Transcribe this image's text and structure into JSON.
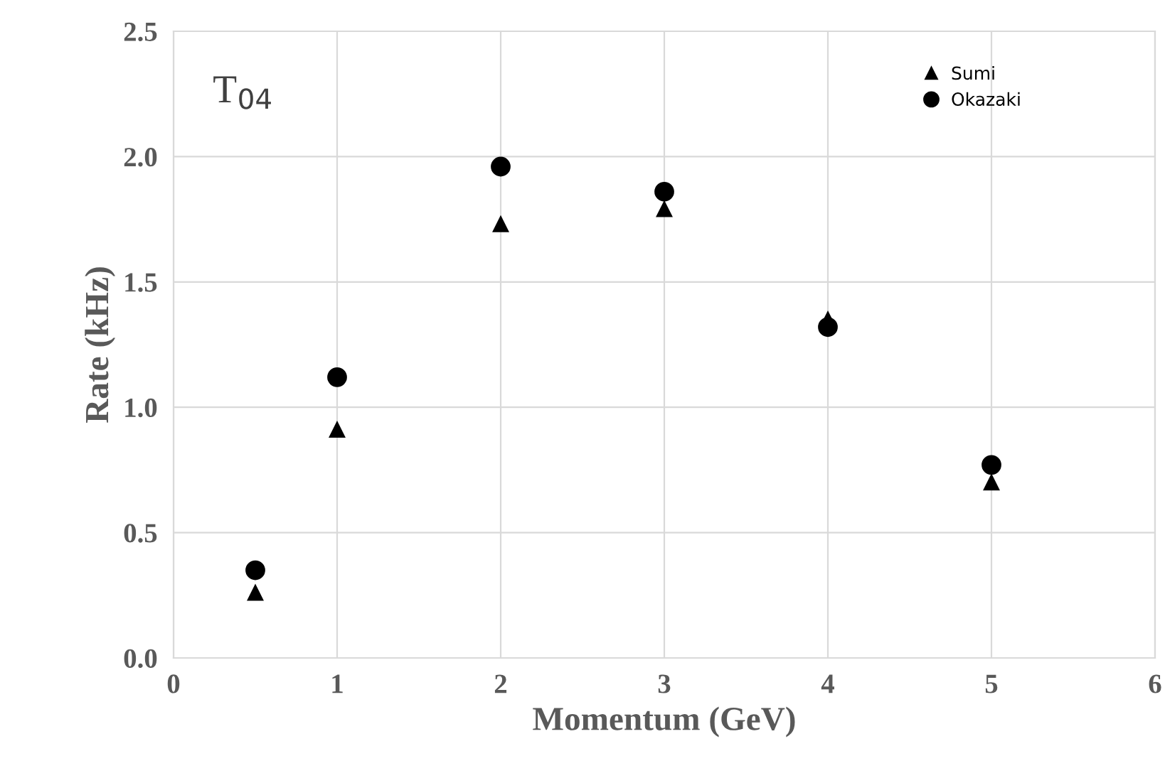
{
  "chart_data": {
    "type": "scatter",
    "xlabel": "Momentum (GeV)",
    "ylabel": "Rate (kHz)",
    "annotations": [
      "T$_{04}$"
    ],
    "series": [
      {
        "name": "Sumi",
        "color": "#000000",
        "marker": "triangle",
        "x": [
          0.5,
          1,
          2,
          3,
          4,
          5
        ],
        "values": [
          0.26,
          0.91,
          1.73,
          1.79,
          1.35,
          0.7
        ]
      },
      {
        "name": "Okazaki",
        "color": "#000000",
        "marker": "circle",
        "x": [
          0.5,
          1,
          2,
          3,
          4,
          5
        ],
        "values": [
          0.35,
          1.12,
          1.96,
          1.86,
          1.32,
          0.77
        ]
      }
    ],
    "xlim": [
      0,
      6
    ],
    "xticks": [
      0,
      1,
      2,
      3,
      4,
      5,
      6
    ],
    "ylim": [
      0,
      2.5
    ],
    "yticks": [
      {
        "value": 0,
        "label": "0.0"
      },
      {
        "value": 0.5,
        "label": "0.5"
      },
      {
        "value": 1,
        "label": "1.0"
      },
      {
        "value": 1.5,
        "label": "1.5"
      },
      {
        "value": 2,
        "label": "2.0"
      },
      {
        "value": 2.5,
        "label": "2.5"
      }
    ],
    "grid": true,
    "legend": "top right"
  }
}
